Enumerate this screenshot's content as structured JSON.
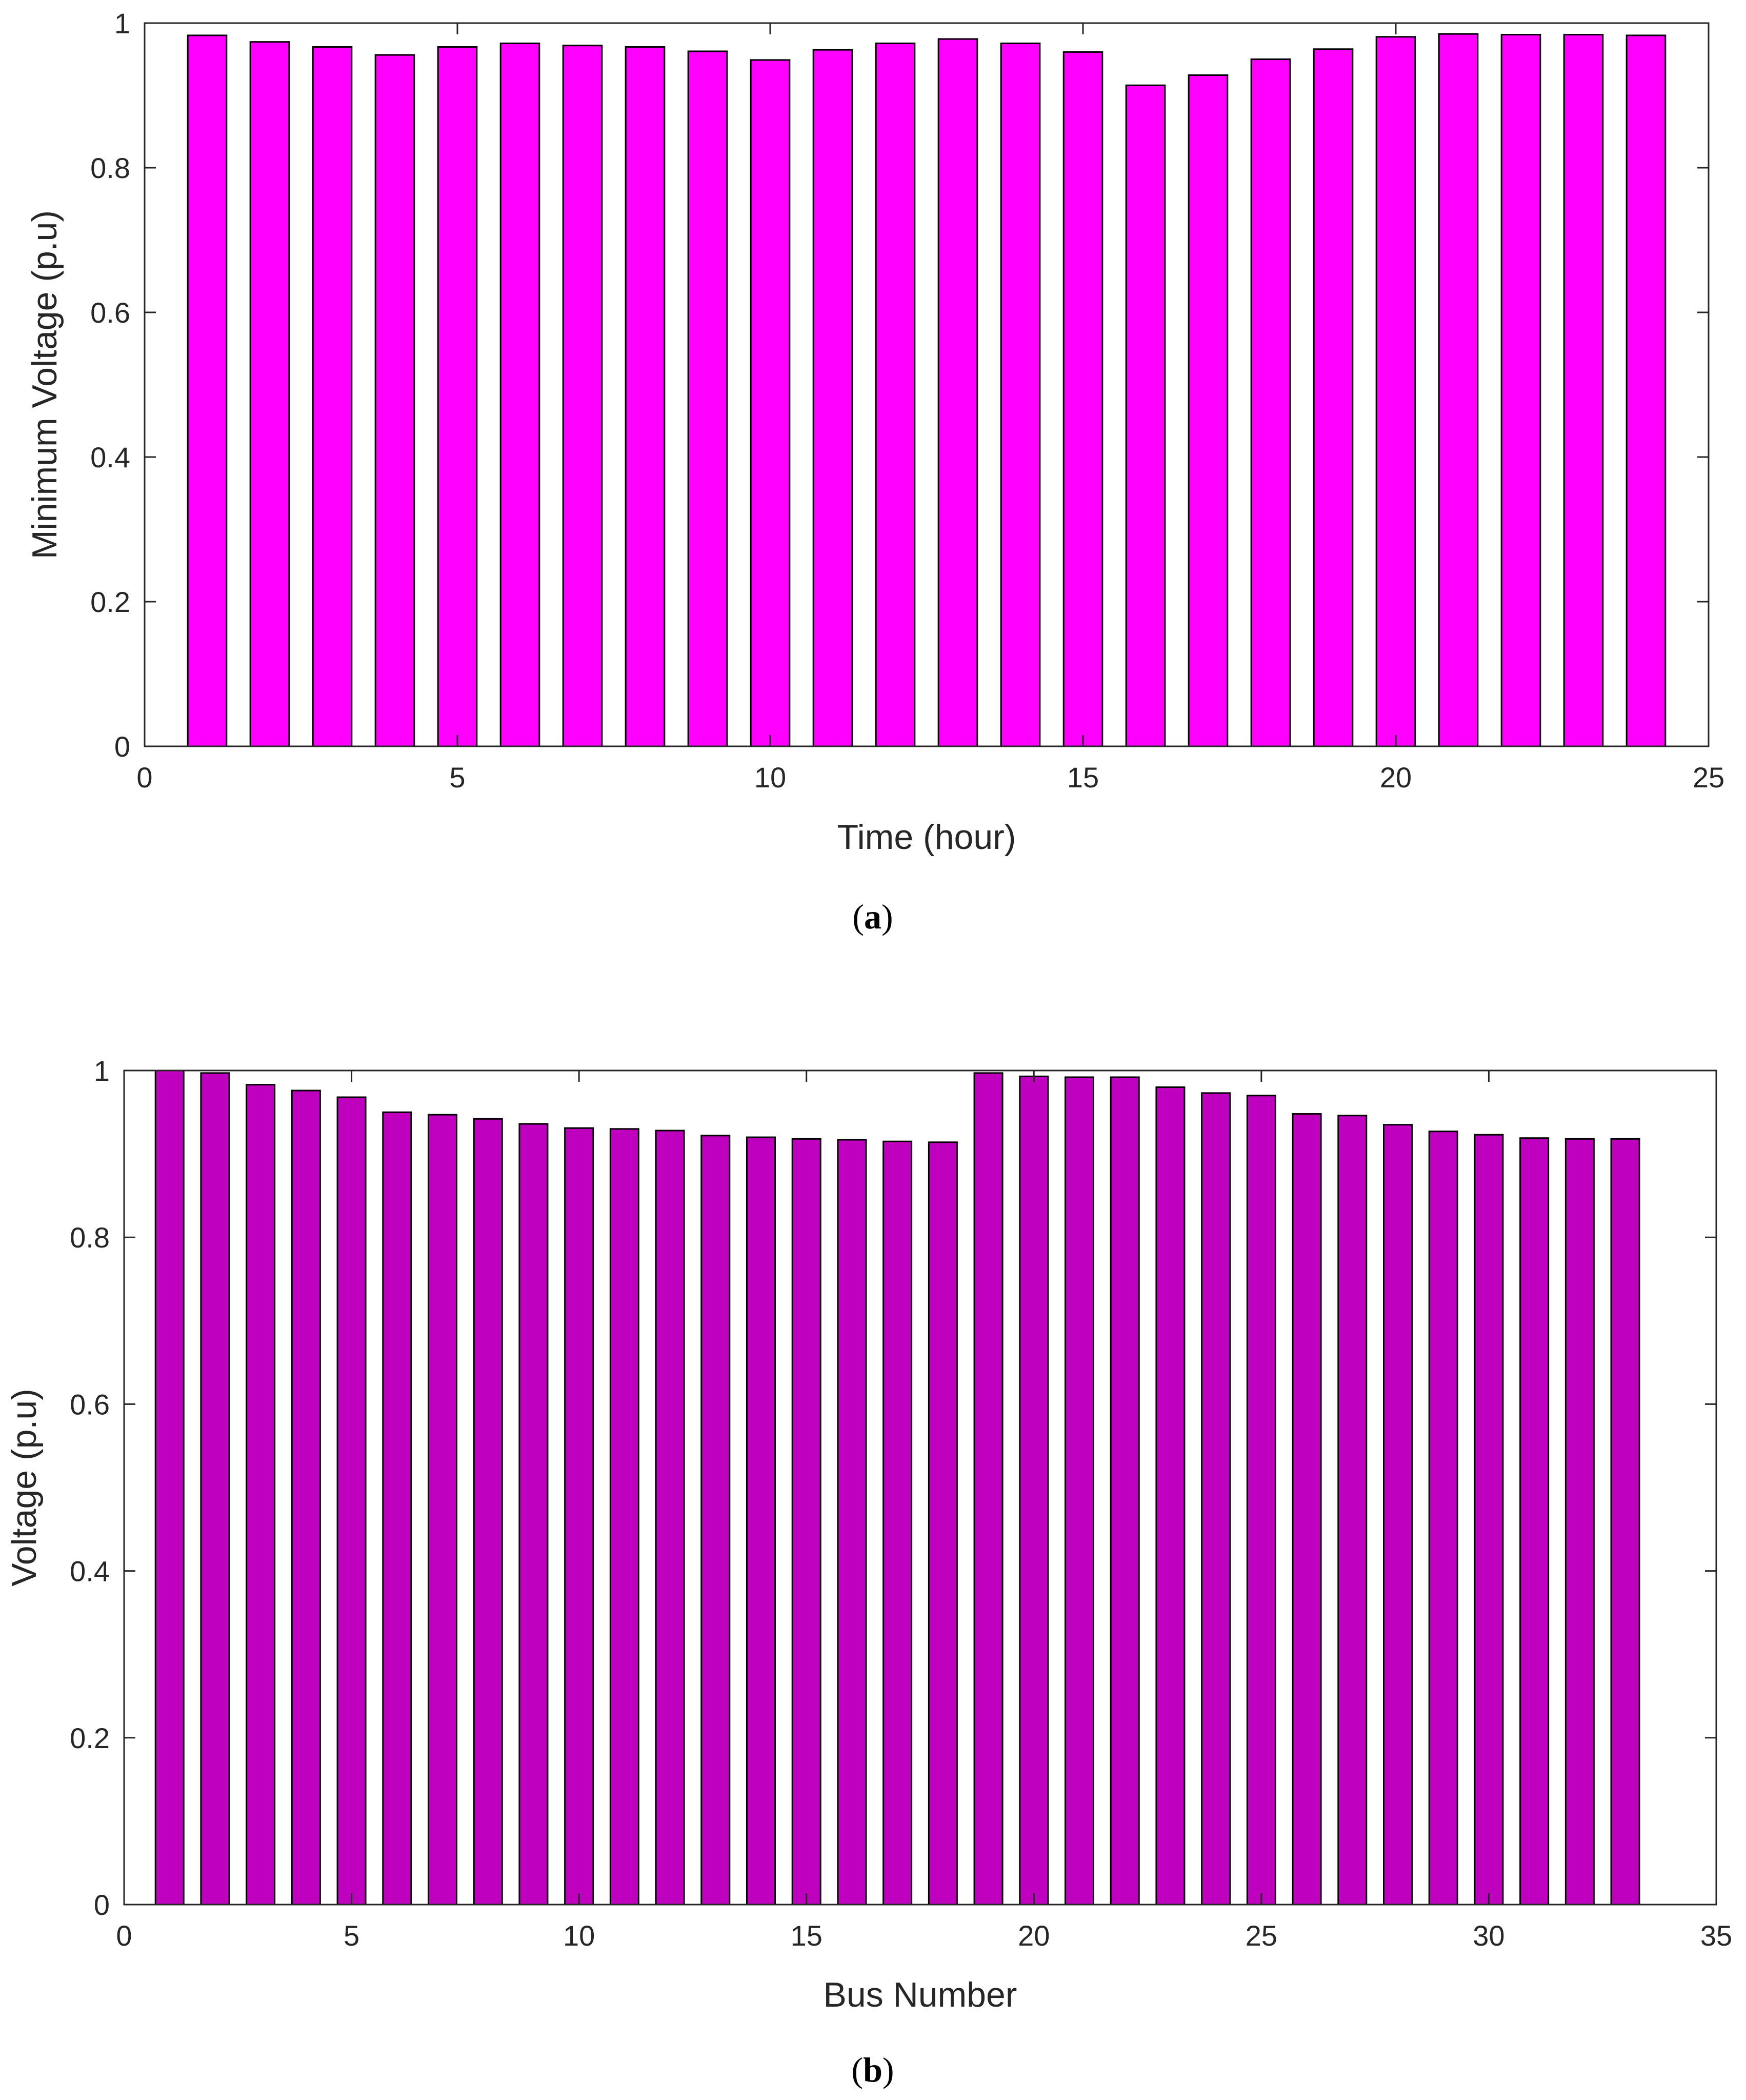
{
  "chart_data": [
    {
      "type": "bar",
      "panel": "a",
      "caption_letter": "a",
      "xlabel": "Time (hour)",
      "ylabel": "Minimum Voltage (p.u)",
      "xlim": [
        0,
        25
      ],
      "ylim": [
        0,
        1
      ],
      "xticks": [
        0,
        5,
        10,
        15,
        20,
        25
      ],
      "yticks": [
        0,
        0.2,
        0.4,
        0.6,
        0.8,
        1
      ],
      "ytick_labels": [
        "0",
        "0.2",
        "0.4",
        "0.6",
        "0.8",
        "1"
      ],
      "bar_color": "#FF00FF",
      "x": [
        1,
        2,
        3,
        4,
        5,
        6,
        7,
        8,
        9,
        10,
        11,
        12,
        13,
        14,
        15,
        16,
        17,
        18,
        19,
        20,
        21,
        22,
        23,
        24
      ],
      "values": [
        0.983,
        0.974,
        0.967,
        0.956,
        0.967,
        0.972,
        0.969,
        0.967,
        0.961,
        0.949,
        0.963,
        0.972,
        0.978,
        0.972,
        0.96,
        0.914,
        0.928,
        0.95,
        0.964,
        0.981,
        0.985,
        0.984,
        0.984,
        0.983
      ],
      "grid": false,
      "legend": null
    },
    {
      "type": "bar",
      "panel": "b",
      "caption_letter": "b",
      "xlabel": "Bus Number",
      "ylabel": "Voltage (p.u)",
      "xlim": [
        0,
        35
      ],
      "ylim": [
        0,
        1
      ],
      "xticks": [
        0,
        5,
        10,
        15,
        20,
        25,
        30,
        35
      ],
      "yticks": [
        0,
        0.2,
        0.4,
        0.6,
        0.8,
        1
      ],
      "ytick_labels": [
        "0",
        "0.2",
        "0.4",
        "0.6",
        "0.8",
        "1"
      ],
      "bar_color": "#BF00BF",
      "x": [
        1,
        2,
        3,
        4,
        5,
        6,
        7,
        8,
        9,
        10,
        11,
        12,
        13,
        14,
        15,
        16,
        17,
        18,
        19,
        20,
        21,
        22,
        23,
        24,
        25,
        26,
        27,
        28,
        29,
        30,
        31,
        32,
        33
      ],
      "values": [
        1.0,
        0.997,
        0.983,
        0.976,
        0.968,
        0.95,
        0.947,
        0.942,
        0.936,
        0.931,
        0.93,
        0.928,
        0.922,
        0.92,
        0.918,
        0.917,
        0.915,
        0.914,
        0.997,
        0.993,
        0.992,
        0.992,
        0.98,
        0.973,
        0.97,
        0.948,
        0.946,
        0.935,
        0.927,
        0.923,
        0.919,
        0.918,
        0.918
      ],
      "grid": false,
      "legend": null
    }
  ]
}
